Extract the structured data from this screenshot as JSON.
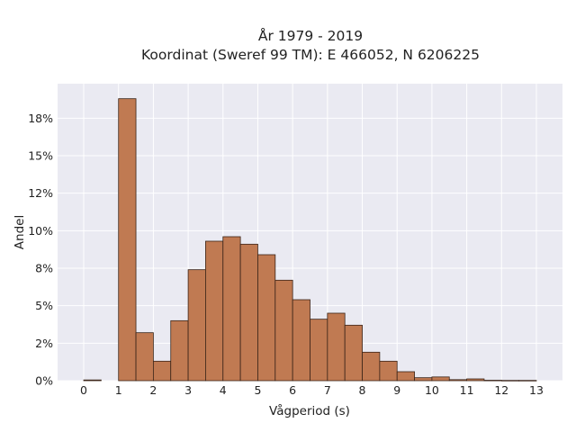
{
  "chart_data": {
    "type": "bar",
    "title": "År 1979 - 2019",
    "subtitle": "Koordinat (Sweref 99 TM): E 466052, N 6206225",
    "xlabel": "Vågperiod (s)",
    "ylabel": "Andel",
    "x_tick_labels": [
      "0",
      "1",
      "2",
      "3",
      "4",
      "5",
      "6",
      "7",
      "8",
      "9",
      "10",
      "11",
      "12",
      "13"
    ],
    "y_tick_labels": [
      "0%",
      "2%",
      "5%",
      "8%",
      "10%",
      "12%",
      "15%",
      "18%"
    ],
    "y_tick_values": [
      0,
      2.5,
      5,
      7.5,
      10,
      12.5,
      15,
      17.5
    ],
    "xlim": [
      -0.75,
      13.75
    ],
    "ylim": [
      0,
      19.8
    ],
    "bin_width": 0.5,
    "bins": [
      {
        "x0": 0.0,
        "value": 0.05
      },
      {
        "x0": 1.0,
        "value": 18.8
      },
      {
        "x0": 1.5,
        "value": 3.2
      },
      {
        "x0": 2.0,
        "value": 1.3
      },
      {
        "x0": 2.5,
        "value": 4.0
      },
      {
        "x0": 3.0,
        "value": 7.4
      },
      {
        "x0": 3.5,
        "value": 9.3
      },
      {
        "x0": 4.0,
        "value": 9.6
      },
      {
        "x0": 4.5,
        "value": 9.1
      },
      {
        "x0": 5.0,
        "value": 8.4
      },
      {
        "x0": 5.5,
        "value": 6.7
      },
      {
        "x0": 6.0,
        "value": 5.4
      },
      {
        "x0": 6.5,
        "value": 4.1
      },
      {
        "x0": 7.0,
        "value": 4.5
      },
      {
        "x0": 7.5,
        "value": 3.7
      },
      {
        "x0": 8.0,
        "value": 1.9
      },
      {
        "x0": 8.5,
        "value": 1.3
      },
      {
        "x0": 9.0,
        "value": 0.6
      },
      {
        "x0": 9.5,
        "value": 0.2
      },
      {
        "x0": 10.0,
        "value": 0.25
      },
      {
        "x0": 10.5,
        "value": 0.07
      },
      {
        "x0": 11.0,
        "value": 0.12
      },
      {
        "x0": 11.5,
        "value": 0.03
      },
      {
        "x0": 12.0,
        "value": 0.02
      },
      {
        "x0": 12.5,
        "value": 0.02
      }
    ],
    "grid": true,
    "colors": {
      "bar_fill": "#c07a52",
      "bar_edge": "#3a2418",
      "plot_background": "#eaeaf2",
      "grid": "#ffffff"
    }
  }
}
